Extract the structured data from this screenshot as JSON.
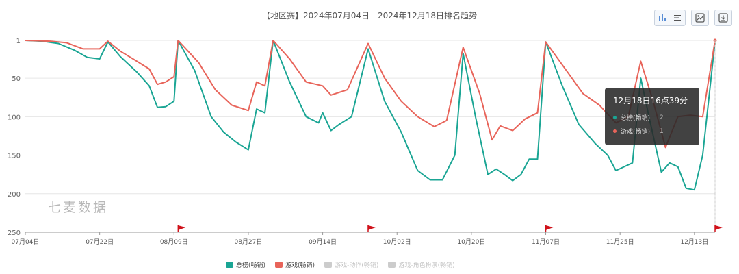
{
  "chart_data": {
    "type": "line",
    "title": "【地区赛】2024年07月04日 - 2024年12月18日排名趋势",
    "xlabel": "",
    "ylabel": "",
    "y_inverted": true,
    "ylim": [
      1,
      250
    ],
    "yticks": [
      "1",
      "50",
      "100",
      "150",
      "200",
      "250"
    ],
    "xticks": [
      "07月04日",
      "07月22日",
      "08月09日",
      "08月27日",
      "09月14日",
      "10月02日",
      "10月20日",
      "11月07日",
      "11月25日",
      "12月13日"
    ],
    "x_range": [
      "2024-07-04",
      "2024-12-18"
    ],
    "grid": "horizontal",
    "legend_position": "bottom",
    "flag_markers": [
      "2024-08-10",
      "2024-09-25",
      "2024-11-07",
      "2024-12-18"
    ],
    "series": [
      {
        "name": "总榜(畅销)",
        "color": "#1aa594",
        "points": [
          [
            "2024-07-04",
            1
          ],
          [
            "2024-07-08",
            2
          ],
          [
            "2024-07-12",
            5
          ],
          [
            "2024-07-16",
            14
          ],
          [
            "2024-07-19",
            23
          ],
          [
            "2024-07-22",
            25
          ],
          [
            "2024-07-24",
            3
          ],
          [
            "2024-07-27",
            22
          ],
          [
            "2024-07-31",
            42
          ],
          [
            "2024-08-03",
            60
          ],
          [
            "2024-08-05",
            88
          ],
          [
            "2024-08-07",
            87
          ],
          [
            "2024-08-09",
            80
          ],
          [
            "2024-08-10",
            1
          ],
          [
            "2024-08-14",
            40
          ],
          [
            "2024-08-18",
            100
          ],
          [
            "2024-08-21",
            120
          ],
          [
            "2024-08-24",
            133
          ],
          [
            "2024-08-27",
            143
          ],
          [
            "2024-08-29",
            90
          ],
          [
            "2024-08-31",
            95
          ],
          [
            "2024-09-02",
            1
          ],
          [
            "2024-09-06",
            55
          ],
          [
            "2024-09-10",
            100
          ],
          [
            "2024-09-13",
            108
          ],
          [
            "2024-09-14",
            95
          ],
          [
            "2024-09-16",
            118
          ],
          [
            "2024-09-18",
            110
          ],
          [
            "2024-09-21",
            100
          ],
          [
            "2024-09-25",
            12
          ],
          [
            "2024-09-29",
            80
          ],
          [
            "2024-10-03",
            120
          ],
          [
            "2024-10-07",
            170
          ],
          [
            "2024-10-10",
            182
          ],
          [
            "2024-10-13",
            182
          ],
          [
            "2024-10-16",
            150
          ],
          [
            "2024-10-18",
            18
          ],
          [
            "2024-10-21",
            100
          ],
          [
            "2024-10-24",
            175
          ],
          [
            "2024-10-26",
            168
          ],
          [
            "2024-10-28",
            175
          ],
          [
            "2024-10-30",
            183
          ],
          [
            "2024-11-01",
            175
          ],
          [
            "2024-11-03",
            155
          ],
          [
            "2024-11-05",
            155
          ],
          [
            "2024-11-07",
            3
          ],
          [
            "2024-11-11",
            60
          ],
          [
            "2024-11-15",
            110
          ],
          [
            "2024-11-19",
            135
          ],
          [
            "2024-11-22",
            150
          ],
          [
            "2024-11-24",
            170
          ],
          [
            "2024-11-26",
            165
          ],
          [
            "2024-11-28",
            160
          ],
          [
            "2024-11-30",
            50
          ],
          [
            "2024-12-02",
            100
          ],
          [
            "2024-12-05",
            172
          ],
          [
            "2024-12-07",
            160
          ],
          [
            "2024-12-09",
            165
          ],
          [
            "2024-12-11",
            193
          ],
          [
            "2024-12-13",
            195
          ],
          [
            "2024-12-15",
            150
          ],
          [
            "2024-12-18",
            2
          ]
        ]
      },
      {
        "name": "游戏(畅销)",
        "color": "#e8645a",
        "points": [
          [
            "2024-07-04",
            1
          ],
          [
            "2024-07-10",
            2
          ],
          [
            "2024-07-14",
            4
          ],
          [
            "2024-07-18",
            12
          ],
          [
            "2024-07-22",
            12
          ],
          [
            "2024-07-24",
            2
          ],
          [
            "2024-07-27",
            15
          ],
          [
            "2024-07-31",
            28
          ],
          [
            "2024-08-03",
            38
          ],
          [
            "2024-08-05",
            58
          ],
          [
            "2024-08-07",
            55
          ],
          [
            "2024-08-09",
            48
          ],
          [
            "2024-08-10",
            1
          ],
          [
            "2024-08-15",
            30
          ],
          [
            "2024-08-19",
            65
          ],
          [
            "2024-08-23",
            85
          ],
          [
            "2024-08-27",
            92
          ],
          [
            "2024-08-29",
            55
          ],
          [
            "2024-08-31",
            60
          ],
          [
            "2024-09-02",
            1
          ],
          [
            "2024-09-06",
            25
          ],
          [
            "2024-09-10",
            55
          ],
          [
            "2024-09-14",
            60
          ],
          [
            "2024-09-16",
            72
          ],
          [
            "2024-09-20",
            65
          ],
          [
            "2024-09-25",
            5
          ],
          [
            "2024-09-29",
            50
          ],
          [
            "2024-10-03",
            80
          ],
          [
            "2024-10-07",
            100
          ],
          [
            "2024-10-11",
            113
          ],
          [
            "2024-10-14",
            105
          ],
          [
            "2024-10-18",
            10
          ],
          [
            "2024-10-22",
            70
          ],
          [
            "2024-10-25",
            130
          ],
          [
            "2024-10-27",
            112
          ],
          [
            "2024-10-30",
            118
          ],
          [
            "2024-11-02",
            103
          ],
          [
            "2024-11-05",
            95
          ],
          [
            "2024-11-07",
            3
          ],
          [
            "2024-11-12",
            40
          ],
          [
            "2024-11-16",
            70
          ],
          [
            "2024-11-20",
            85
          ],
          [
            "2024-11-24",
            108
          ],
          [
            "2024-11-27",
            100
          ],
          [
            "2024-11-30",
            28
          ],
          [
            "2024-12-03",
            80
          ],
          [
            "2024-12-06",
            140
          ],
          [
            "2024-12-09",
            100
          ],
          [
            "2024-12-12",
            98
          ],
          [
            "2024-12-15",
            100
          ],
          [
            "2024-12-18",
            1
          ]
        ]
      }
    ]
  },
  "tooltip": {
    "title": "12月18日16点39分",
    "rows": [
      {
        "label": "总榜(畅销)",
        "value": "2",
        "color": "#1aa594"
      },
      {
        "label": "游戏(畅销)",
        "value": "1",
        "color": "#e8645a"
      }
    ]
  },
  "watermark": "七麦数据",
  "legend": [
    {
      "label": "总榜(畅销)",
      "color": "#1aa594",
      "active": true
    },
    {
      "label": "游戏(畅销)",
      "color": "#e8645a",
      "active": true
    },
    {
      "label": "游戏-动作(畅销)",
      "color": "#cccccc",
      "active": false
    },
    {
      "label": "游戏-角色扮演(畅销)",
      "color": "#cccccc",
      "active": false
    }
  ],
  "toolbar": {
    "icons": [
      "bar-chart-icon",
      "list-icon",
      "image-icon",
      "download-icon"
    ]
  }
}
